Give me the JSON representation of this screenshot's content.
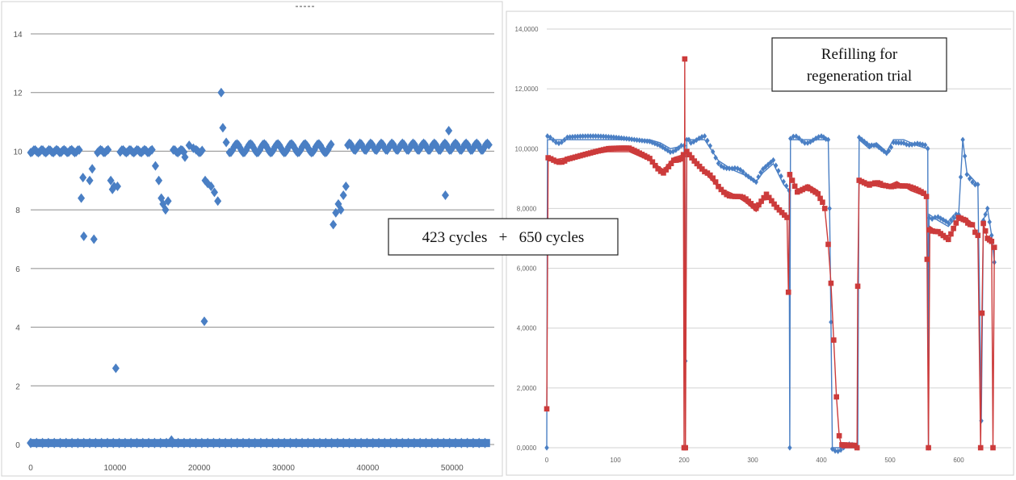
{
  "chart_data": [
    {
      "type": "scatter",
      "title": "",
      "xlabel": "",
      "ylabel": "",
      "xlim": [
        0,
        55000
      ],
      "ylim": [
        0,
        14
      ],
      "yticks": [
        "0",
        "2",
        "4",
        "6",
        "8",
        "10",
        "12",
        "14"
      ],
      "xticks": [
        "0",
        "10000",
        "20000",
        "30000",
        "40000",
        "50000"
      ],
      "grid": true,
      "color": "#4a7fc4",
      "series": [
        {
          "points": [
            [
              6000,
              8.4
            ],
            [
              6200,
              9.1
            ],
            [
              6300,
              7.1
            ],
            [
              7000,
              9.0
            ],
            [
              7300,
              9.4
            ],
            [
              7500,
              7.0
            ],
            [
              9500,
              9.0
            ],
            [
              9700,
              8.7
            ],
            [
              9900,
              8.8
            ],
            [
              10100,
              2.6
            ],
            [
              10300,
              8.8
            ],
            [
              14800,
              9.5
            ],
            [
              15200,
              9.0
            ],
            [
              15500,
              8.4
            ],
            [
              15700,
              8.2
            ],
            [
              16000,
              8.0
            ],
            [
              16300,
              8.3
            ],
            [
              16700,
              0.15
            ],
            [
              18300,
              9.8
            ],
            [
              18800,
              10.2
            ],
            [
              19300,
              10.1
            ],
            [
              20600,
              4.2
            ],
            [
              20700,
              9.0
            ],
            [
              21000,
              8.9
            ],
            [
              21400,
              8.8
            ],
            [
              21800,
              8.6
            ],
            [
              22200,
              8.3
            ],
            [
              22600,
              12.0
            ],
            [
              22800,
              10.8
            ],
            [
              23200,
              10.3
            ],
            [
              35900,
              7.5
            ],
            [
              36200,
              7.9
            ],
            [
              36500,
              8.2
            ],
            [
              36800,
              8.0
            ],
            [
              37100,
              8.5
            ],
            [
              37400,
              8.8
            ],
            [
              49200,
              8.5
            ],
            [
              49600,
              10.7
            ]
          ]
        }
      ],
      "baseline_band": {
        "y": 0.05,
        "x_from": 0,
        "x_to": 54500
      },
      "top_band": {
        "y": 10.0
      }
    },
    {
      "type": "line",
      "title": "",
      "xlabel": "",
      "ylabel": "",
      "xlim": [
        0,
        660
      ],
      "ylim": [
        0,
        14
      ],
      "yticks": [
        "0,0000",
        "2,0000",
        "4,0000",
        "6,0000",
        "8,0000",
        "10,0000",
        "12,0000",
        "14,0000"
      ],
      "xticks": [
        "0",
        "100",
        "200",
        "300",
        "400",
        "500",
        "600"
      ],
      "grid": true,
      "series": [
        {
          "color": "#4a7fc4",
          "marker": "diamond",
          "values": [
            [
              0,
              0
            ],
            [
              1,
              10.3
            ],
            [
              30,
              10.3
            ],
            [
              60,
              10.3
            ],
            [
              90,
              10.3
            ],
            [
              120,
              10.3
            ],
            [
              150,
              10.3
            ],
            [
              165,
              10.2
            ],
            [
              180,
              10.0
            ],
            [
              200,
              10.1
            ],
            [
              202,
              2.9
            ],
            [
              204,
              10.3
            ],
            [
              210,
              10.3
            ],
            [
              230,
              10.3
            ],
            [
              250,
              9.6
            ],
            [
              270,
              9.3
            ],
            [
              290,
              9.1
            ],
            [
              305,
              8.9
            ],
            [
              315,
              9.2
            ],
            [
              330,
              9.5
            ],
            [
              345,
              8.8
            ],
            [
              353,
              8.6
            ],
            [
              354,
              0
            ],
            [
              355,
              10.3
            ],
            [
              380,
              10.3
            ],
            [
              400,
              10.3
            ],
            [
              410,
              10.3
            ],
            [
              412,
              8.0
            ],
            [
              414,
              4.2
            ],
            [
              416,
              0
            ],
            [
              453,
              0
            ],
            [
              455,
              10.3
            ],
            [
              470,
              10.0
            ],
            [
              480,
              10.2
            ],
            [
              495,
              9.9
            ],
            [
              505,
              10.3
            ],
            [
              520,
              10.3
            ],
            [
              540,
              10.1
            ],
            [
              555,
              10.0
            ],
            [
              556,
              0
            ],
            [
              557,
              7.8
            ],
            [
              570,
              7.6
            ],
            [
              585,
              7.4
            ],
            [
              600,
              7.8
            ],
            [
              606,
              10.3
            ],
            [
              612,
              9.2
            ],
            [
              620,
              9.0
            ],
            [
              628,
              8.8
            ],
            [
              633,
              0.9
            ],
            [
              636,
              7.6
            ],
            [
              642,
              8.0
            ],
            [
              648,
              7.1
            ],
            [
              652,
              6.2
            ]
          ]
        },
        {
          "color": "#cc3b3b",
          "marker": "square",
          "values": [
            [
              0,
              1.3
            ],
            [
              2,
              9.6
            ],
            [
              30,
              9.7
            ],
            [
              60,
              9.8
            ],
            [
              90,
              9.9
            ],
            [
              120,
              9.9
            ],
            [
              150,
              9.6
            ],
            [
              170,
              9.3
            ],
            [
              185,
              9.7
            ],
            [
              199,
              9.8
            ],
            [
              200,
              0
            ],
            [
              201,
              13.0
            ],
            [
              202,
              0
            ],
            [
              204,
              9.9
            ],
            [
              215,
              9.6
            ],
            [
              230,
              9.2
            ],
            [
              250,
              8.7
            ],
            [
              270,
              8.5
            ],
            [
              290,
              8.2
            ],
            [
              305,
              7.9
            ],
            [
              320,
              8.4
            ],
            [
              335,
              8.0
            ],
            [
              350,
              7.7
            ],
            [
              352,
              5.2
            ],
            [
              354,
              9.2
            ],
            [
              365,
              8.6
            ],
            [
              380,
              8.8
            ],
            [
              395,
              8.6
            ],
            [
              405,
              8.0
            ],
            [
              410,
              6.8
            ],
            [
              414,
              5.5
            ],
            [
              418,
              3.6
            ],
            [
              422,
              1.7
            ],
            [
              426,
              0.4
            ],
            [
              430,
              0
            ],
            [
              452,
              0
            ],
            [
              453,
              5.4
            ],
            [
              455,
              9.0
            ],
            [
              470,
              8.8
            ],
            [
              490,
              8.7
            ],
            [
              510,
              8.9
            ],
            [
              530,
              8.6
            ],
            [
              553,
              8.4
            ],
            [
              554,
              6.3
            ],
            [
              556,
              0
            ],
            [
              558,
              7.4
            ],
            [
              570,
              7.2
            ],
            [
              585,
              6.9
            ],
            [
              600,
              7.6
            ],
            [
              610,
              7.7
            ],
            [
              620,
              7.5
            ],
            [
              628,
              7.1
            ],
            [
              632,
              0
            ],
            [
              634,
              4.5
            ],
            [
              636,
              7.5
            ],
            [
              642,
              7.0
            ],
            [
              648,
              6.9
            ],
            [
              650,
              0
            ],
            [
              652,
              6.7
            ]
          ]
        }
      ]
    }
  ],
  "annotations": {
    "cycles_label": "423 cycles   +   650 cycles",
    "refill_label_line1": "Refilling for",
    "refill_label_line2": "regeneration trial"
  }
}
